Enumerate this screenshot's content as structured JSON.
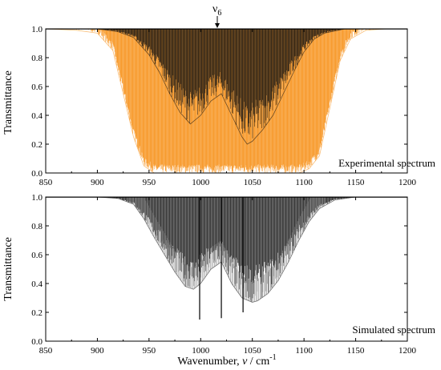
{
  "figure": {
    "panels_note": "Two stacked transmittance spectra sharing the same wavenumber axis"
  },
  "colors": {
    "orange": "#f7931e",
    "dark": "#111111",
    "gray": "#888888",
    "axis": "#000000"
  },
  "chart_data": [
    {
      "type": "line",
      "name": "experimental",
      "annotation": "Experimental spectrum",
      "marker_label": "ν",
      "marker_sub": "6",
      "marker_x": 1020,
      "xlabel": "",
      "ylabel": "Transmittance",
      "xlim": [
        850,
        1200
      ],
      "ylim": [
        0.0,
        1.0
      ],
      "xticks": [
        850,
        900,
        950,
        1000,
        1050,
        1100,
        1150,
        1200
      ],
      "yticks": [
        "0.0",
        "0.2",
        "0.4",
        "0.6",
        "0.8",
        "1.0"
      ],
      "series": [
        {
          "role": "envelope-orange",
          "x": [
            850,
            880,
            900,
            915,
            925,
            935,
            945,
            955,
            965,
            975,
            985,
            995,
            1005,
            1015,
            1025,
            1035,
            1045,
            1055,
            1065,
            1075,
            1085,
            1095,
            1105,
            1115,
            1125,
            1135,
            1145,
            1160,
            1180,
            1200
          ],
          "values": [
            1.0,
            0.99,
            0.97,
            0.85,
            0.55,
            0.25,
            0.05,
            0.0,
            0.0,
            0.0,
            0.0,
            0.0,
            0.0,
            0.0,
            0.0,
            0.0,
            0.0,
            0.0,
            0.0,
            0.0,
            0.0,
            0.0,
            0.03,
            0.12,
            0.45,
            0.78,
            0.93,
            0.99,
            1.0,
            1.0
          ]
        },
        {
          "role": "envelope-dark",
          "x": [
            850,
            900,
            920,
            935,
            950,
            960,
            970,
            980,
            990,
            1000,
            1010,
            1020,
            1030,
            1040,
            1045,
            1050,
            1060,
            1070,
            1080,
            1090,
            1100,
            1110,
            1120,
            1140,
            1160,
            1200
          ],
          "values": [
            1.0,
            1.0,
            0.98,
            0.94,
            0.82,
            0.7,
            0.55,
            0.42,
            0.34,
            0.4,
            0.5,
            0.55,
            0.4,
            0.25,
            0.2,
            0.22,
            0.3,
            0.4,
            0.55,
            0.7,
            0.84,
            0.93,
            0.97,
            1.0,
            1.0,
            1.0
          ]
        }
      ]
    },
    {
      "type": "line",
      "name": "simulated",
      "annotation": "Simulated spectrum",
      "xlabel": "Wavenumber, ν̃ / cm⁻¹",
      "xlabel_main": "Wavenumber, ",
      "xlabel_nu": "ν",
      "xlabel_unit": " / cm",
      "xlabel_exp": "-1",
      "ylabel": "Transmittance",
      "xlim": [
        850,
        1200
      ],
      "ylim": [
        0.0,
        1.0
      ],
      "xticks": [
        850,
        900,
        950,
        1000,
        1050,
        1100,
        1150,
        1200
      ],
      "yticks": [
        "0.0",
        "0.2",
        "0.4",
        "0.6",
        "0.8",
        "1.0"
      ],
      "series": [
        {
          "role": "envelope-dark",
          "x": [
            850,
            900,
            920,
            935,
            945,
            955,
            965,
            975,
            985,
            993,
            1000,
            1010,
            1020,
            1030,
            1040,
            1050,
            1055,
            1065,
            1075,
            1085,
            1095,
            1105,
            1115,
            1130,
            1150,
            1200
          ],
          "values": [
            1.0,
            1.0,
            0.99,
            0.95,
            0.85,
            0.72,
            0.6,
            0.48,
            0.38,
            0.36,
            0.4,
            0.5,
            0.55,
            0.4,
            0.3,
            0.27,
            0.28,
            0.33,
            0.42,
            0.55,
            0.7,
            0.83,
            0.92,
            0.98,
            1.0,
            1.0
          ]
        }
      ],
      "sharp_lines": [
        {
          "x": 999,
          "y": 0.15
        },
        {
          "x": 1020,
          "y": 0.16
        },
        {
          "x": 1041,
          "y": 0.2
        }
      ]
    }
  ]
}
